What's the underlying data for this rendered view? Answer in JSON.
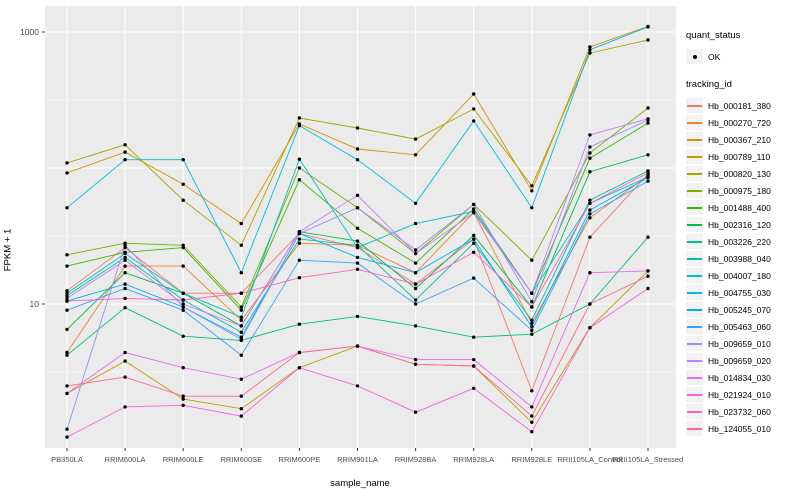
{
  "chart": {
    "y_axis_title": "FPKM + 1",
    "x_axis_title": "sample_name",
    "panel_bg": "#EBEBEB",
    "grid_color": "#FFFFFF",
    "tick_label_color": "#4D4D4D",
    "point_color": "#000000"
  },
  "legend": {
    "quant_title": "quant_status",
    "quant_items": [
      {
        "label": "OK",
        "shape": "point"
      }
    ],
    "tracking_title": "tracking_id",
    "key_bg": "#F2F2F2"
  },
  "chart_data": {
    "type": "line",
    "title": "",
    "xlabel": "sample_name",
    "ylabel": "FPKM + 1",
    "y_scale": "log10",
    "ylim": [
      0.9,
      1550
    ],
    "y_ticks": [
      10,
      1000
    ],
    "y_tick_labels": [
      "10",
      "1000"
    ],
    "y_minor_gridlines": [
      3.16,
      31.6,
      316
    ],
    "y_major_gridlines": [
      10,
      100,
      1000
    ],
    "grid": true,
    "legend_position": "right",
    "categories": [
      "PB350LA",
      "RRIM600LA",
      "RRIM600LE",
      "RRIM600SE",
      "RRIM600PE",
      "RRIM901LA",
      "RRIM928BA",
      "RRIM928LA",
      "RRIM928LE",
      "RRII105LA_Control",
      "RRII105LA_Stressed"
    ],
    "series": [
      {
        "name": "Hb_000181_380",
        "color": "#F8766D",
        "values": [
          12.5,
          26,
          12,
          12,
          33,
          26,
          14,
          30,
          2.3,
          31,
          90
        ]
      },
      {
        "name": "Hb_000270_720",
        "color": "#EA8331",
        "values": [
          4.4,
          19,
          19,
          7.6,
          28,
          27,
          17,
          47,
          7.2,
          43,
          88
        ]
      },
      {
        "name": "Hb_000367_210",
        "color": "#D89000",
        "values": [
          92,
          131,
          76,
          39,
          211,
          138,
          125,
          350,
          68,
          776,
          1100
        ]
      },
      {
        "name": "Hb_000789_110",
        "color": "#C09B00",
        "values": [
          2.2,
          3.8,
          2.0,
          1.7,
          3.4,
          4.9,
          3.6,
          3.5,
          1.35,
          6.7,
          17.5
        ]
      },
      {
        "name": "Hb_000820_130",
        "color": "#A3A500",
        "values": [
          109,
          148,
          58,
          27,
          233,
          197,
          163,
          272,
          74,
          700,
          873
        ]
      },
      {
        "name": "Hb_000975_180",
        "color": "#7CAE00",
        "values": [
          23,
          28,
          27,
          9.5,
          100,
          51,
          23.5,
          54,
          21,
          129,
          276
        ]
      },
      {
        "name": "Hb_001488_400",
        "color": "#39B600",
        "values": [
          19,
          24,
          26,
          9,
          82,
          36,
          20,
          50,
          12,
          118,
          214
        ]
      },
      {
        "name": "Hb_002316_120",
        "color": "#00BB4E",
        "values": [
          6.5,
          17,
          12,
          6.9,
          34,
          29,
          13,
          32,
          9.5,
          94,
          125
        ]
      },
      {
        "name": "Hb_003226_220",
        "color": "#00BF7D",
        "values": [
          4.2,
          9.4,
          5.8,
          5.4,
          7.1,
          8.1,
          6.9,
          5.7,
          6.0,
          10,
          31
        ]
      },
      {
        "name": "Hb_003988_040",
        "color": "#00C1A3",
        "values": [
          11.5,
          22,
          10.7,
          6.2,
          30,
          27,
          10.7,
          28,
          7.6,
          58,
          95
        ]
      },
      {
        "name": "Hb_004007_180",
        "color": "#00BFC4",
        "values": [
          12,
          23.5,
          12,
          8,
          116,
          26,
          39,
          48,
          12,
          55,
          86
        ]
      },
      {
        "name": "Hb_004755_030",
        "color": "#00BAE0",
        "values": [
          51,
          115,
          115,
          17,
          205,
          115,
          55,
          222,
          51,
          740,
          1090
        ]
      },
      {
        "name": "Hb_005245_070",
        "color": "#00B0F6",
        "values": [
          10.5,
          14,
          9.5,
          5.7,
          33,
          22,
          17,
          30,
          6.8,
          49,
          85
        ]
      },
      {
        "name": "Hb_005463_060",
        "color": "#35A2FF",
        "values": [
          9,
          13,
          9,
          4.2,
          21,
          20,
          10,
          15.5,
          6.4,
          46,
          80
        ]
      },
      {
        "name": "Hb_009659_010",
        "color": "#9590FF",
        "values": [
          1.2,
          27,
          9.5,
          5.5,
          33,
          51,
          25,
          54,
          10.4,
          143,
          225
        ]
      },
      {
        "name": "Hb_009659_020",
        "color": "#C77CFF",
        "values": [
          11,
          21,
          10,
          6.9,
          34,
          63,
          23.5,
          47,
          12,
          175,
          230
        ]
      },
      {
        "name": "Hb_014834_030",
        "color": "#E76BF3",
        "values": [
          2.2,
          4.4,
          3.4,
          2.8,
          4.4,
          4.9,
          3.9,
          3.9,
          1.75,
          17,
          17.5
        ]
      },
      {
        "name": "Hb_021924_010",
        "color": "#FA62DB",
        "values": [
          1.05,
          1.75,
          1.8,
          1.5,
          3.4,
          2.5,
          1.6,
          2.4,
          1.15,
          6.7,
          13
        ]
      },
      {
        "name": "Hb_023732_060",
        "color": "#FF62BC",
        "values": [
          10.5,
          11,
          10.7,
          12,
          15.6,
          18,
          14,
          24,
          9.5,
          55,
          92
        ]
      },
      {
        "name": "Hb_124055_010",
        "color": "#FF6A98",
        "values": [
          2.5,
          2.9,
          2.1,
          2.1,
          4.4,
          4.9,
          3.6,
          3.5,
          1.5,
          10,
          16
        ]
      }
    ]
  }
}
